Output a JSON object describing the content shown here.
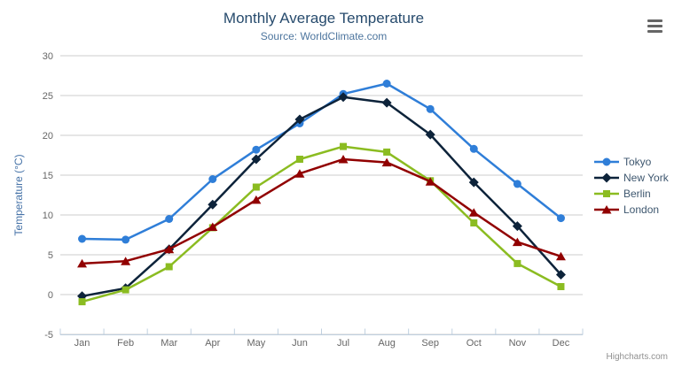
{
  "chart_data": {
    "type": "line",
    "title": "Monthly Average Temperature",
    "subtitle": "Source: WorldClimate.com",
    "categories": [
      "Jan",
      "Feb",
      "Mar",
      "Apr",
      "May",
      "Jun",
      "Jul",
      "Aug",
      "Sep",
      "Oct",
      "Nov",
      "Dec"
    ],
    "xlabel": "",
    "ylabel": "Temperature (°C)",
    "ylim": [
      -5,
      30
    ],
    "yticks": [
      -5,
      0,
      5,
      10,
      15,
      20,
      25,
      30
    ],
    "grid": true,
    "legend_position": "right",
    "series": [
      {
        "name": "Tokyo",
        "color": "#2f7ed8",
        "marker": "circle",
        "values": [
          7.0,
          6.9,
          9.5,
          14.5,
          18.2,
          21.5,
          25.2,
          26.5,
          23.3,
          18.3,
          13.9,
          9.6
        ]
      },
      {
        "name": "New York",
        "color": "#0d233a",
        "marker": "diamond",
        "values": [
          -0.2,
          0.8,
          5.7,
          11.3,
          17.0,
          22.0,
          24.8,
          24.1,
          20.1,
          14.1,
          8.6,
          2.5
        ]
      },
      {
        "name": "Berlin",
        "color": "#8bbc21",
        "marker": "square",
        "values": [
          -0.9,
          0.6,
          3.5,
          8.4,
          13.5,
          17.0,
          18.6,
          17.9,
          14.3,
          9.0,
          3.9,
          1.0
        ]
      },
      {
        "name": "London",
        "color": "#910000",
        "marker": "triangle",
        "values": [
          3.9,
          4.2,
          5.7,
          8.5,
          11.9,
          15.2,
          17.0,
          16.6,
          14.2,
          10.3,
          6.6,
          4.8
        ]
      }
    ],
    "credit": "Highcharts.com"
  },
  "icons": {
    "context_menu": "hamburger-icon"
  },
  "colors": {
    "title": "#274b6d",
    "subtitle": "#4d759e",
    "axis_labels": "#666666",
    "y_axis_title": "#4572a7",
    "gridline": "#cccccc",
    "axis_line": "#c0d0e0",
    "legend_text": "#3e576f",
    "credit": "#909090",
    "menu_icon": "#666666",
    "background": "#ffffff"
  }
}
